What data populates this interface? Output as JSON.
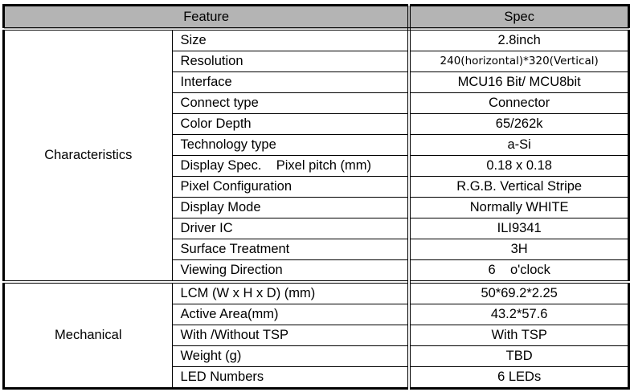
{
  "header": {
    "feature": "Feature",
    "spec": "Spec"
  },
  "sections": [
    {
      "name": "Characteristics",
      "rows": [
        {
          "feature": "Size",
          "spec": "2.8inch"
        },
        {
          "feature": "Resolution",
          "spec": "240(horizontal)*320(Vertical)"
        },
        {
          "feature": "Interface",
          "spec": "MCU16 Bit/ MCU8bit"
        },
        {
          "feature": "Connect type",
          "spec": "Connector"
        },
        {
          "feature": "Color Depth",
          "spec": "65/262k"
        },
        {
          "feature": "Technology type",
          "spec": "a-Si"
        },
        {
          "feature": "Display Spec.    Pixel pitch (mm)",
          "spec": "0.18 x 0.18"
        },
        {
          "feature": "Pixel Configuration",
          "spec": "R.G.B. Vertical Stripe"
        },
        {
          "feature": "Display Mode",
          "spec": "Normally WHITE"
        },
        {
          "feature": "Driver IC",
          "spec": "ILI9341"
        },
        {
          "feature": "Surface Treatment",
          "spec": "3H"
        },
        {
          "feature": "Viewing Direction",
          "spec": "6    o'clock"
        }
      ]
    },
    {
      "name": "Mechanical",
      "rows": [
        {
          "feature": "LCM (W x H x D) (mm)",
          "spec": "50*69.2*2.25"
        },
        {
          "feature": "Active Area(mm)",
          "spec": "43.2*57.6"
        },
        {
          "feature": "With /Without TSP",
          "spec": "With TSP"
        },
        {
          "feature": "Weight (g)",
          "spec": "TBD"
        },
        {
          "feature": "LED Numbers",
          "spec": "6 LEDs"
        }
      ]
    }
  ]
}
